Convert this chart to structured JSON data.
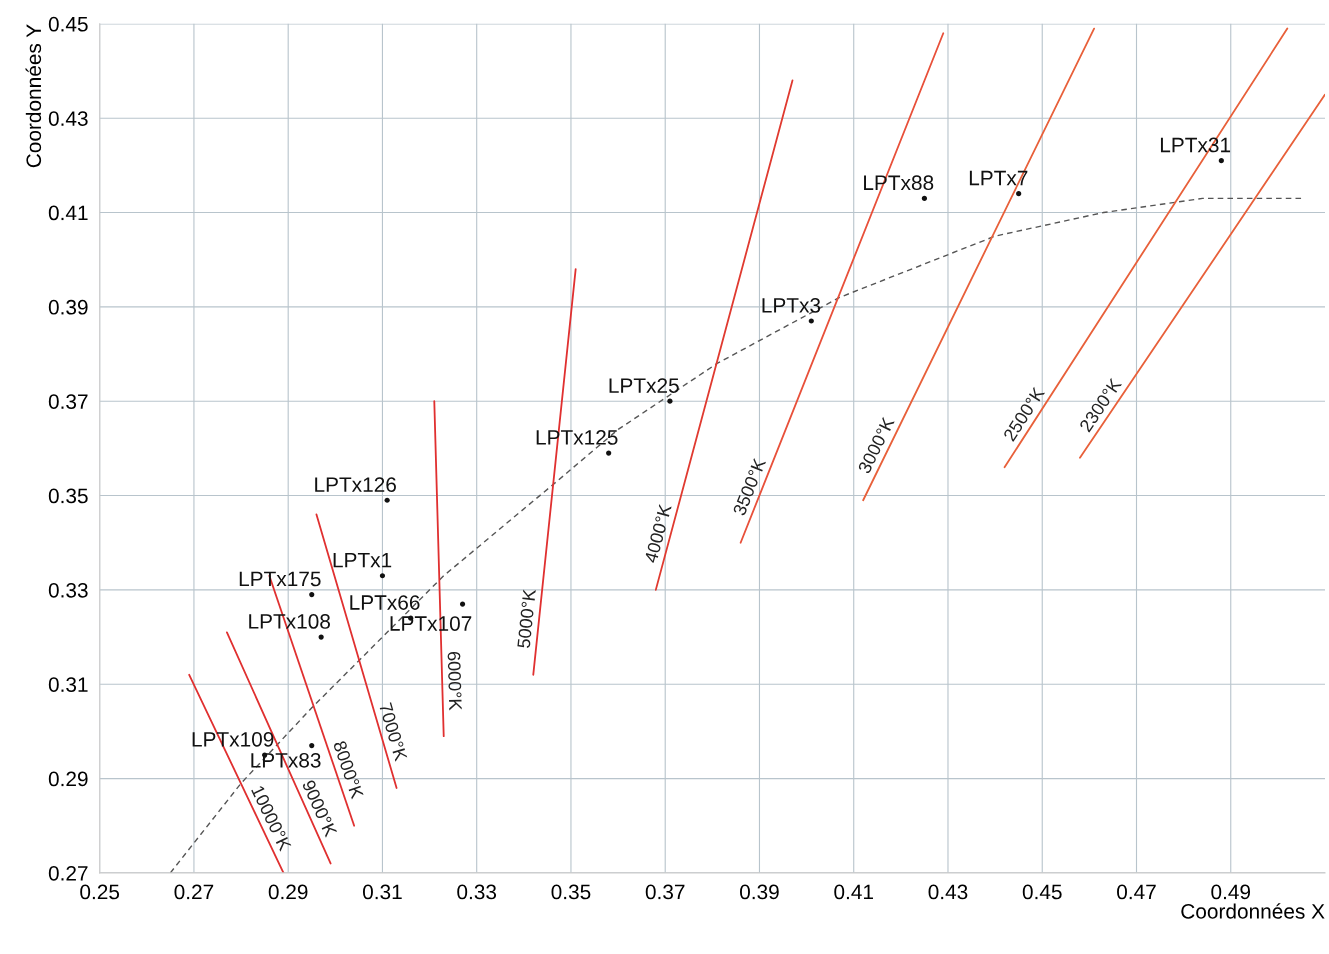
{
  "chart_data": {
    "type": "scatter",
    "xlabel": "Coordonnées X",
    "ylabel": "Coordonnées Y",
    "xlim": [
      0.25,
      0.51
    ],
    "ylim": [
      0.27,
      0.45
    ],
    "xticks": [
      0.25,
      0.27,
      0.29,
      0.31,
      0.33,
      0.35,
      0.37,
      0.39,
      0.41,
      0.43,
      0.45,
      0.47,
      0.49
    ],
    "yticks": [
      0.27,
      0.29,
      0.31,
      0.33,
      0.35,
      0.37,
      0.39,
      0.41,
      0.43,
      0.45
    ],
    "grid": true,
    "series": [
      {
        "type": "line",
        "color": "#555555",
        "line_style": "dashed",
        "x": [
          0.265,
          0.28,
          0.295,
          0.305,
          0.323,
          0.347,
          0.36,
          0.381,
          0.407,
          0.44,
          0.463,
          0.484,
          0.505
        ],
        "values": [
          0.27,
          0.289,
          0.305,
          0.315,
          0.333,
          0.353,
          0.364,
          0.378,
          0.392,
          0.405,
          0.41,
          0.413,
          0.413
        ]
      },
      {
        "type": "line",
        "name": "10000°K",
        "color": "#e03030",
        "x": [
          0.269,
          0.289
        ],
        "values": [
          0.312,
          0.27
        ]
      },
      {
        "type": "line",
        "name": "9000°K",
        "color": "#e03030",
        "x": [
          0.277,
          0.299
        ],
        "values": [
          0.321,
          0.272
        ]
      },
      {
        "type": "line",
        "name": "8000°K",
        "color": "#e03030",
        "x": [
          0.286,
          0.304
        ],
        "values": [
          0.333,
          0.28
        ]
      },
      {
        "type": "line",
        "name": "7000°K",
        "color": "#e03030",
        "x": [
          0.296,
          0.313
        ],
        "values": [
          0.346,
          0.288
        ]
      },
      {
        "type": "line",
        "name": "6000°K",
        "color": "#e03030",
        "x": [
          0.321,
          0.323
        ],
        "values": [
          0.37,
          0.299
        ]
      },
      {
        "type": "line",
        "name": "5000°K",
        "color": "#e03030",
        "x": [
          0.351,
          0.342
        ],
        "values": [
          0.398,
          0.312
        ]
      },
      {
        "type": "line",
        "name": "4000°K",
        "color": "#e03a30",
        "x": [
          0.397,
          0.368
        ],
        "values": [
          0.438,
          0.33
        ]
      },
      {
        "type": "line",
        "name": "3500°K",
        "color": "#e8503a",
        "x": [
          0.429,
          0.386
        ],
        "values": [
          0.448,
          0.34
        ]
      },
      {
        "type": "line",
        "name": "3000°K",
        "color": "#e8603a",
        "x": [
          0.461,
          0.412
        ],
        "values": [
          0.449,
          0.349
        ]
      },
      {
        "type": "line",
        "name": "2500°K",
        "color": "#e8603a",
        "x": [
          0.502,
          0.442
        ],
        "values": [
          0.449,
          0.356
        ]
      },
      {
        "type": "line",
        "name": "2300°K",
        "color": "#e8603a",
        "x": [
          0.51,
          0.458
        ],
        "values": [
          0.435,
          0.358
        ]
      },
      {
        "marker": "circle",
        "color": "#111111",
        "x": [
          0.285,
          0.295,
          0.297,
          0.295,
          0.31,
          0.311,
          0.316,
          0.327,
          0.358,
          0.371,
          0.401,
          0.425,
          0.445,
          0.488
        ],
        "values": [
          0.295,
          0.297,
          0.32,
          0.329,
          0.333,
          0.349,
          0.324,
          0.327,
          0.359,
          0.37,
          0.387,
          0.413,
          0.414,
          0.421
        ]
      }
    ],
    "annotations": [
      {
        "text": "LPTx109",
        "x": 0.285,
        "y": 0.295
      },
      {
        "text": "LPTx83",
        "x": 0.295,
        "y": 0.297
      },
      {
        "text": "LPTx108",
        "x": 0.297,
        "y": 0.32
      },
      {
        "text": "LPTx175",
        "x": 0.295,
        "y": 0.329
      },
      {
        "text": "LPTx1",
        "x": 0.31,
        "y": 0.333
      },
      {
        "text": "LPTx126",
        "x": 0.311,
        "y": 0.349
      },
      {
        "text": "LPTx66",
        "x": 0.316,
        "y": 0.324
      },
      {
        "text": "LPTx107",
        "x": 0.327,
        "y": 0.327
      },
      {
        "text": "LPTx125",
        "x": 0.358,
        "y": 0.359
      },
      {
        "text": "LPTx25",
        "x": 0.371,
        "y": 0.37
      },
      {
        "text": "LPTx3",
        "x": 0.401,
        "y": 0.387
      },
      {
        "text": "LPTx88",
        "x": 0.425,
        "y": 0.413
      },
      {
        "text": "LPTx7",
        "x": 0.445,
        "y": 0.414
      },
      {
        "text": "LPTx31",
        "x": 0.488,
        "y": 0.421
      }
    ]
  }
}
